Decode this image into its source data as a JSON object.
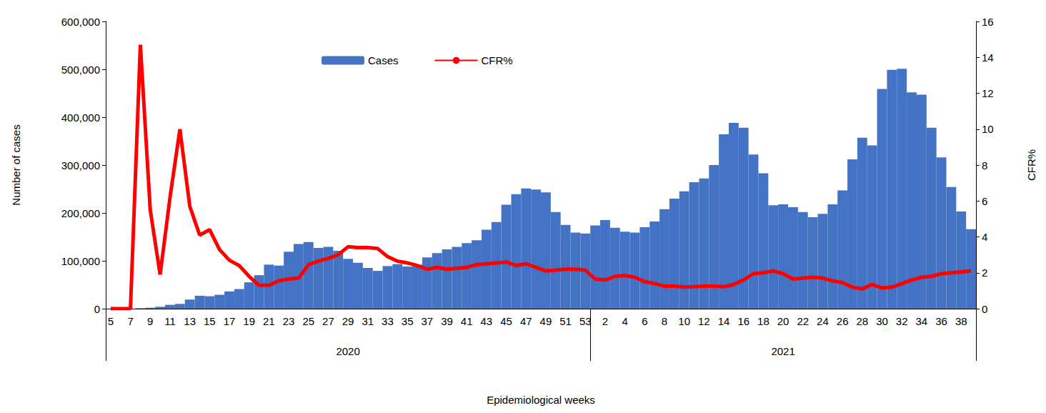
{
  "chart_data": {
    "type": "bar",
    "x_label": "Epidemiological weeks",
    "y_label": "Number of cases",
    "y2_label": "CFR%",
    "categories": [
      "5",
      null,
      "7",
      null,
      "9",
      null,
      "11",
      null,
      "13",
      null,
      "15",
      null,
      "17",
      null,
      "19",
      null,
      "21",
      null,
      "23",
      null,
      "25",
      null,
      "27",
      null,
      "29",
      null,
      "31",
      null,
      "33",
      null,
      "35",
      null,
      "37",
      null,
      "39",
      null,
      "41",
      null,
      "43",
      null,
      "45",
      null,
      "47",
      null,
      "49",
      null,
      "51",
      null,
      "53",
      null,
      "2",
      null,
      "4",
      null,
      "6",
      null,
      "8",
      null,
      "10",
      null,
      "12",
      null,
      "14",
      null,
      "16",
      null,
      "18",
      null,
      "20",
      null,
      "22",
      null,
      "24",
      null,
      "26",
      null,
      "28",
      null,
      "30",
      null,
      "32",
      null,
      "34",
      null,
      "36",
      null,
      "38",
      null
    ],
    "category_groups": [
      {
        "label": "2020",
        "size": 49
      },
      {
        "label": "2021",
        "size": 39
      }
    ],
    "series": [
      {
        "name": "Cases",
        "type": "bar",
        "color": "#4472c4",
        "values": [
          0,
          0,
          0,
          1000,
          2000,
          4000,
          8000,
          10000,
          19000,
          27000,
          26000,
          29000,
          36000,
          41000,
          55000,
          70000,
          92000,
          90000,
          119000,
          135000,
          139000,
          127000,
          129000,
          121000,
          104000,
          96000,
          85000,
          79000,
          89000,
          93000,
          88000,
          92000,
          107000,
          116000,
          124000,
          129000,
          137000,
          143000,
          165000,
          181000,
          217000,
          239000,
          251000,
          249000,
          243000,
          202000,
          175000,
          159000,
          157000,
          174000,
          185000,
          169000,
          161000,
          159000,
          170000,
          182000,
          208000,
          230000,
          245000,
          264000,
          272000,
          300000,
          364000,
          388000,
          378000,
          322000,
          283000,
          216000,
          218000,
          212000,
          202000,
          191000,
          198000,
          218000,
          247000,
          312000,
          357000,
          341000,
          459000,
          499000,
          501000,
          452000,
          447000,
          378000,
          316000,
          254000,
          203000,
          166000
        ]
      },
      {
        "name": "CFR%",
        "type": "line",
        "color": "#ff0000",
        "axis": "y2",
        "values": [
          0,
          0,
          0,
          14.7,
          5.5,
          1.9,
          6.2,
          10.0,
          5.7,
          4.1,
          4.4,
          3.3,
          2.7,
          2.4,
          1.8,
          1.3,
          1.3,
          1.55,
          1.65,
          1.7,
          2.45,
          2.65,
          2.8,
          3.0,
          3.45,
          3.4,
          3.4,
          3.35,
          2.9,
          2.65,
          2.55,
          2.4,
          2.2,
          2.3,
          2.2,
          2.25,
          2.3,
          2.45,
          2.5,
          2.55,
          2.6,
          2.4,
          2.5,
          2.3,
          2.1,
          2.15,
          2.2,
          2.2,
          2.15,
          1.65,
          1.6,
          1.8,
          1.85,
          1.75,
          1.5,
          1.4,
          1.25,
          1.25,
          1.2,
          1.22,
          1.25,
          1.25,
          1.22,
          1.35,
          1.6,
          1.95,
          2.0,
          2.1,
          1.95,
          1.65,
          1.7,
          1.75,
          1.7,
          1.55,
          1.45,
          1.2,
          1.1,
          1.35,
          1.15,
          1.2,
          1.4,
          1.6,
          1.75,
          1.8,
          1.95,
          2.0,
          2.05,
          2.1
        ]
      }
    ],
    "ylim": [
      0,
      600000
    ],
    "yticks": [
      0,
      {
        "value": 100000,
        "label": "100,000"
      },
      {
        "value": 200000,
        "label": "200,000"
      },
      {
        "value": 300000,
        "label": "300,000"
      },
      {
        "value": 400000,
        "label": "400,000"
      },
      {
        "value": 500000,
        "label": "500,000"
      },
      {
        "value": 600000,
        "label": "600,000"
      }
    ],
    "y2lim": [
      0,
      16
    ],
    "y2ticks": [
      0,
      2,
      4,
      6,
      8,
      10,
      12,
      14,
      16
    ],
    "grid": false,
    "legend": "top"
  }
}
